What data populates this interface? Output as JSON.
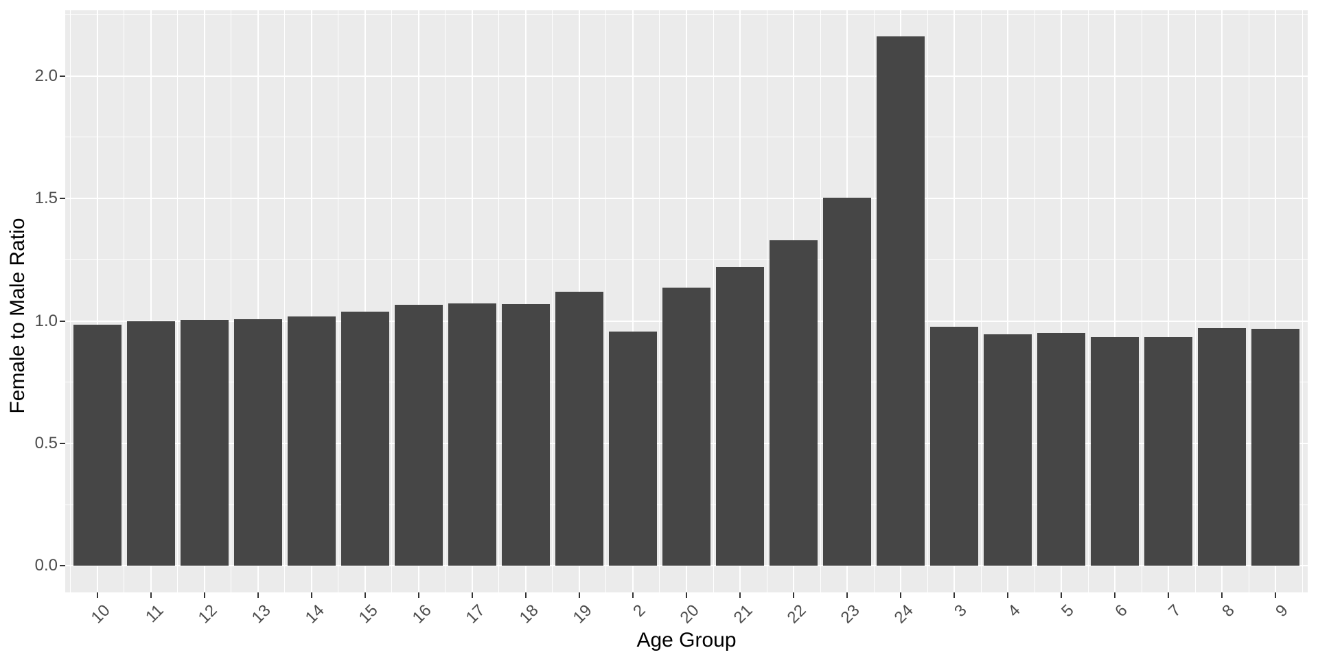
{
  "chart_data": {
    "type": "bar",
    "title": "",
    "xlabel": "Age Group",
    "ylabel": "Female to Male Ratio",
    "categories": [
      "10",
      "11",
      "12",
      "13",
      "14",
      "15",
      "16",
      "17",
      "18",
      "19",
      "2",
      "20",
      "21",
      "22",
      "23",
      "24",
      "3",
      "4",
      "5",
      "6",
      "7",
      "8",
      "9"
    ],
    "values": [
      0.985,
      1.0,
      1.004,
      1.008,
      1.018,
      1.038,
      1.065,
      1.072,
      1.07,
      1.12,
      0.958,
      1.135,
      1.22,
      1.33,
      1.503,
      2.162,
      0.976,
      0.945,
      0.952,
      0.934,
      0.934,
      0.972,
      0.968
    ],
    "y_ticks": [
      0.0,
      0.5,
      1.0,
      1.5,
      2.0
    ],
    "y_tick_labels": [
      "0.0",
      "0.5",
      "1.0",
      "1.5",
      "2.0"
    ],
    "y_minor_ticks": [
      0.25,
      0.75,
      1.25,
      1.75,
      2.25
    ],
    "ylim": [
      -0.108,
      2.268
    ],
    "x_tick_angle": 45,
    "grid": true,
    "legend": false,
    "bar_width_fraction": 0.9,
    "colors": {
      "bar_fill": "#464646",
      "panel_background": "#EBEBEB",
      "grid": "#FFFFFF",
      "tick_mark": "#333333",
      "tick_label": "#4D4D4D",
      "axis_title": "#000000",
      "page_background": "#FFFFFF"
    }
  }
}
